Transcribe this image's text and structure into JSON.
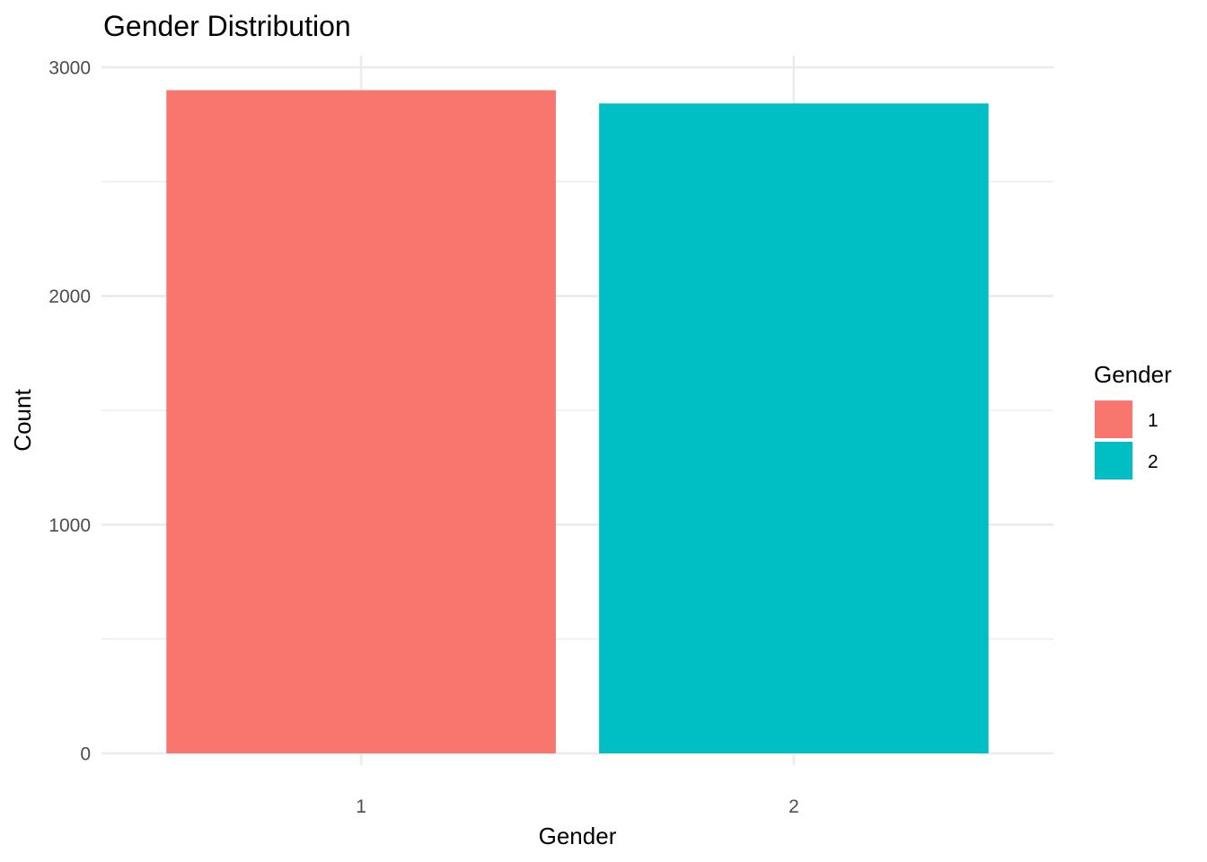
{
  "chart_data": {
    "type": "bar",
    "title": "Gender Distribution",
    "xlabel": "Gender",
    "ylabel": "Count",
    "categories": [
      "1",
      "2"
    ],
    "values": [
      2900,
      2842
    ],
    "colors": [
      "#F8766D",
      "#00BFC4"
    ],
    "ylim": [
      0,
      3000
    ],
    "y_ticks": [
      "0",
      "1000",
      "2000",
      "3000"
    ],
    "y_minor_ticks": [
      500,
      1500,
      2500
    ],
    "grid": true,
    "legend": {
      "title": "Gender",
      "position": "right",
      "items": [
        {
          "label": "1",
          "color": "#F8766D"
        },
        {
          "label": "2",
          "color": "#00BFC4"
        }
      ]
    }
  }
}
